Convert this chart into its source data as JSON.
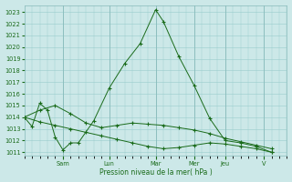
{
  "background_color": "#cce8e8",
  "grid_color": "#99cccc",
  "line_color": "#1a6b1a",
  "xlabel": "Pression niveau de la mer( hPa )",
  "ylim": [
    1010.7,
    1023.6
  ],
  "yticks": [
    1011,
    1012,
    1013,
    1014,
    1015,
    1016,
    1017,
    1018,
    1019,
    1020,
    1021,
    1022,
    1023
  ],
  "xlim": [
    0,
    17
  ],
  "day_labels": [
    "Sam",
    "Lun",
    "Mar",
    "Mer",
    "Jeu",
    "V"
  ],
  "day_tick_positions": [
    2.5,
    5.5,
    8.5,
    11.0,
    13.0,
    15.5
  ],
  "day_vline_positions": [
    2.5,
    5.5,
    8.5,
    11.0,
    13.0,
    15.5
  ],
  "series1_x": [
    0,
    0.5,
    1.0,
    1.5,
    2.0,
    2.5,
    3.0,
    3.5,
    4.5,
    5.5,
    6.5,
    7.5,
    8.5,
    9.0,
    10.0,
    11.0,
    12.0,
    13.0,
    14.0,
    15.0,
    16.0
  ],
  "series1_y": [
    1014.0,
    1013.2,
    1015.2,
    1014.6,
    1012.3,
    1011.2,
    1011.8,
    1011.8,
    1013.7,
    1016.5,
    1018.6,
    1020.3,
    1023.2,
    1022.2,
    1019.2,
    1016.7,
    1013.9,
    1012.0,
    1011.8,
    1011.5,
    1011.0
  ],
  "series2_x": [
    0,
    1,
    2,
    3,
    4,
    5,
    6,
    7,
    8,
    9,
    10,
    11,
    12,
    13,
    14,
    15,
    16
  ],
  "series2_y": [
    1014.0,
    1013.6,
    1013.3,
    1013.0,
    1012.7,
    1012.4,
    1012.1,
    1011.8,
    1011.5,
    1011.3,
    1011.4,
    1011.6,
    1011.8,
    1011.7,
    1011.5,
    1011.3,
    1011.0
  ],
  "series3_x": [
    0,
    1,
    2,
    3,
    4,
    5,
    6,
    7,
    8,
    9,
    10,
    11,
    12,
    13,
    14,
    15,
    16
  ],
  "series3_y": [
    1014.0,
    1014.6,
    1015.0,
    1014.3,
    1013.5,
    1013.1,
    1013.3,
    1013.5,
    1013.4,
    1013.3,
    1013.1,
    1012.9,
    1012.6,
    1012.2,
    1011.9,
    1011.6,
    1011.3
  ]
}
